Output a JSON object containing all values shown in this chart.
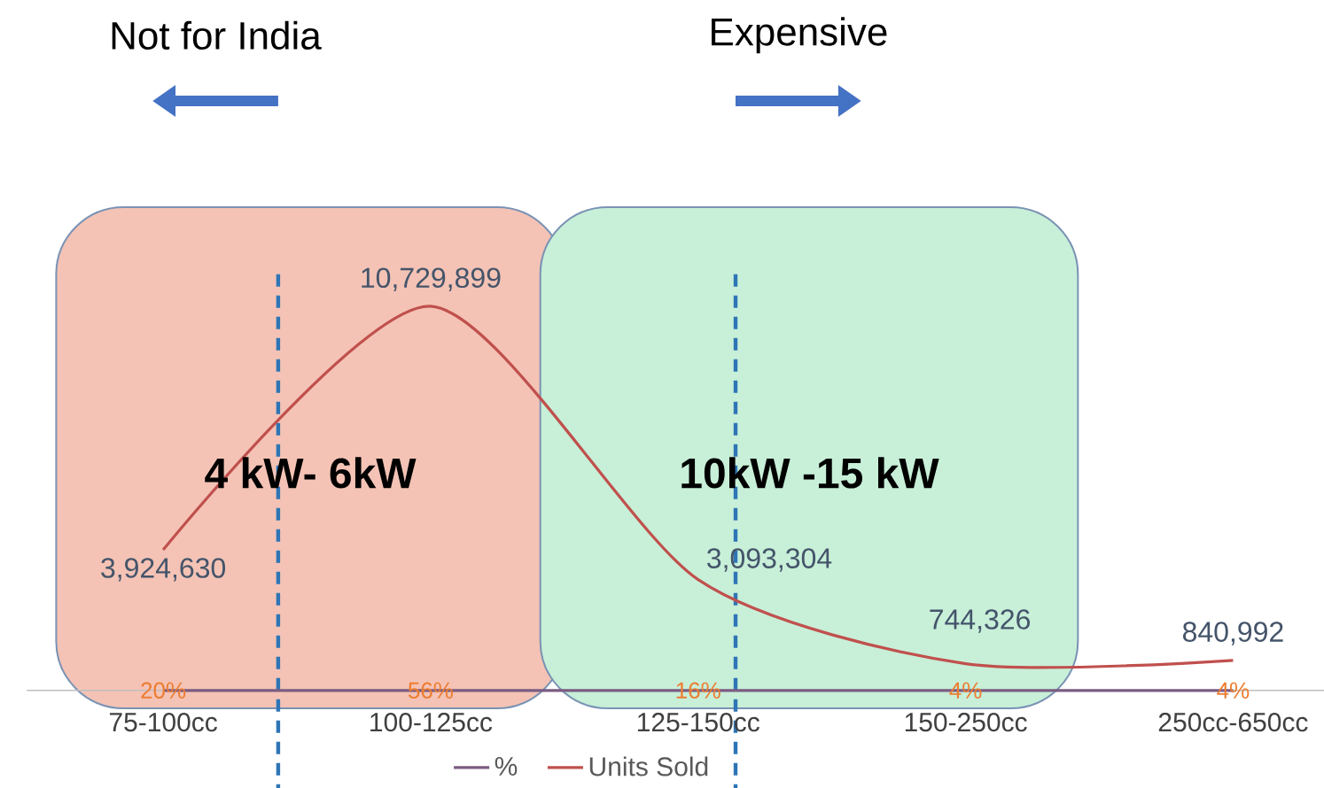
{
  "chart_data": {
    "type": "line",
    "categories": [
      "75-100cc",
      "100-125cc",
      "125-150cc",
      "150-250cc",
      "250cc-650cc"
    ],
    "series": [
      {
        "name": "%",
        "color": "#7a5c82",
        "values": [
          20,
          56,
          16,
          4,
          4
        ],
        "value_labels": [
          "20%",
          "56%",
          "16%",
          "4%",
          "4%"
        ]
      },
      {
        "name": "Units Sold",
        "color": "#c0504d",
        "values": [
          3924630,
          10729899,
          3093304,
          744326,
          840992
        ],
        "value_labels": [
          "3,924,630",
          "10,729,899",
          "3,093,304",
          "744,326",
          "840,992"
        ]
      }
    ],
    "tick_labels": "x",
    "legend": "bottom",
    "annotations": [
      "Not for India",
      "Expensive",
      "4 kW- 6kW",
      "10kW -15 kW"
    ]
  }
}
